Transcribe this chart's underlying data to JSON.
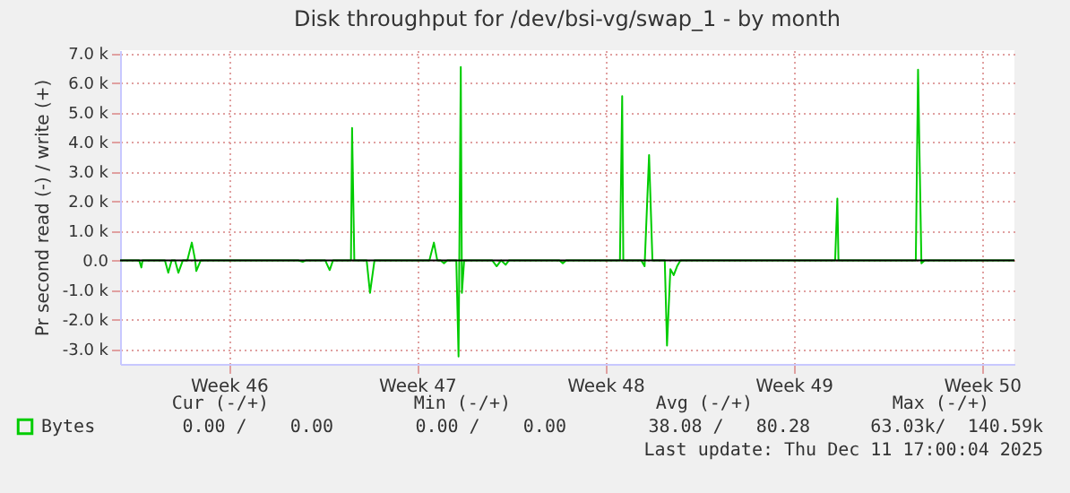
{
  "chart_data": {
    "type": "line",
    "title": "Disk throughput for /dev/bsi-vg/swap_1 - by month",
    "ylabel": "Pr second read (-) / write (+)",
    "x": [
      "2025-11-09T11:00",
      "2025-11-10T04:00",
      "2025-11-10T06:00",
      "2025-11-10T07:00",
      "2025-11-11T03:00",
      "2025-11-11T06:00",
      "2025-11-11T09:00",
      "2025-11-11T12:00",
      "2025-11-11T15:00",
      "2025-11-11T19:00",
      "2025-11-11T23:00",
      "2025-11-12T03:00",
      "2025-11-12T06:00",
      "2025-11-12T07:00",
      "2025-11-12T11:00",
      "2025-11-16T02:00",
      "2025-11-16T06:00",
      "2025-11-16T09:00",
      "2025-11-17T02:00",
      "2025-11-17T06:00",
      "2025-11-17T09:00",
      "2025-11-18T01:00",
      "2025-11-18T02:00",
      "2025-11-18T04:00",
      "2025-11-18T15:00",
      "2025-11-18T18:00",
      "2025-11-18T22:00",
      "2025-11-20T23:00",
      "2025-11-21T03:00",
      "2025-11-21T06:00",
      "2025-11-21T09:00",
      "2025-11-21T12:00",
      "2025-11-21T15:00",
      "2025-11-21T23:00",
      "2025-11-22T01:00",
      "2025-11-22T03:00",
      "2025-11-22T04:00",
      "2025-11-22T06:00",
      "2025-11-22T09:00",
      "2025-11-23T07:00",
      "2025-11-23T11:00",
      "2025-11-23T15:00",
      "2025-11-23T19:00",
      "2025-11-23T22:00",
      "2025-11-25T19:00",
      "2025-11-25T22:00",
      "2025-11-26T01:00",
      "2025-11-28T01:00",
      "2025-11-28T03:00",
      "2025-11-28T04:00",
      "2025-11-28T20:00",
      "2025-11-28T23:00",
      "2025-11-29T03:00",
      "2025-11-29T06:00",
      "2025-11-29T17:00",
      "2025-11-29T19:00",
      "2025-11-29T22:00",
      "2025-11-30T01:00",
      "2025-11-30T04:00",
      "2025-11-30T07:00",
      "2025-12-06T01:00",
      "2025-12-06T03:00",
      "2025-12-06T04:00",
      "2025-12-09T01:00",
      "2025-12-09T03:00",
      "2025-12-09T06:00",
      "2025-12-09T09:00",
      "2025-12-12T17:00"
    ],
    "series": [
      {
        "name": "Bytes",
        "color": "#00cc00",
        "values": [
          0,
          0,
          -240,
          0,
          0,
          -420,
          0,
          0,
          -420,
          0,
          0,
          600,
          0,
          -360,
          0,
          0,
          -50,
          0,
          0,
          -330,
          0,
          0,
          4470,
          0,
          0,
          -1100,
          0,
          0,
          600,
          0,
          0,
          -100,
          0,
          0,
          -3250,
          6530,
          -1100,
          0,
          0,
          0,
          -200,
          0,
          -150,
          0,
          0,
          -100,
          0,
          0,
          5550,
          0,
          0,
          -200,
          3560,
          0,
          0,
          -2880,
          -300,
          -500,
          -200,
          0,
          0,
          2090,
          0,
          0,
          6440,
          -100,
          0,
          0
        ]
      }
    ],
    "xlim": [
      "2025-11-09T11:00",
      "2025-12-12T17:00"
    ],
    "xticks": [
      {
        "value": "2025-11-13T12:00",
        "label": "Week 46"
      },
      {
        "value": "2025-11-20T12:00",
        "label": "Week 47"
      },
      {
        "value": "2025-11-27T12:00",
        "label": "Week 48"
      },
      {
        "value": "2025-12-04T12:00",
        "label": "Week 49"
      },
      {
        "value": "2025-12-11T12:00",
        "label": "Week 50"
      }
    ],
    "ylim": [
      -3500,
      7100
    ],
    "yticks": [
      {
        "value": -3000,
        "label": "-3.0 k"
      },
      {
        "value": -2000,
        "label": "-2.0 k"
      },
      {
        "value": -1000,
        "label": "-1.0 k"
      },
      {
        "value": 0,
        "label": "0.0"
      },
      {
        "value": 1000,
        "label": "1.0 k"
      },
      {
        "value": 2000,
        "label": "2.0 k"
      },
      {
        "value": 3000,
        "label": "3.0 k"
      },
      {
        "value": 4000,
        "label": "4.0 k"
      },
      {
        "value": 5000,
        "label": "5.0 k"
      },
      {
        "value": 6000,
        "label": "6.0 k"
      },
      {
        "value": 7000,
        "label": "7.0 k"
      }
    ],
    "ref_lines": [
      {
        "axis": "y",
        "value": 0,
        "color": "#000000"
      }
    ],
    "grid": true,
    "legend": "bottom left",
    "marker": "none",
    "line_style": "solid",
    "annotations": [
      "Cur (-/+)",
      "Min (-/+)",
      "Avg (-/+)",
      "Max (-/+)",
      "0.00 /    0.00",
      "0.00 /    0.00",
      "38.08 /   80.28",
      "63.03k/  140.59k",
      "Last update: Thu Dec 11 17:00:04 2025"
    ]
  }
}
